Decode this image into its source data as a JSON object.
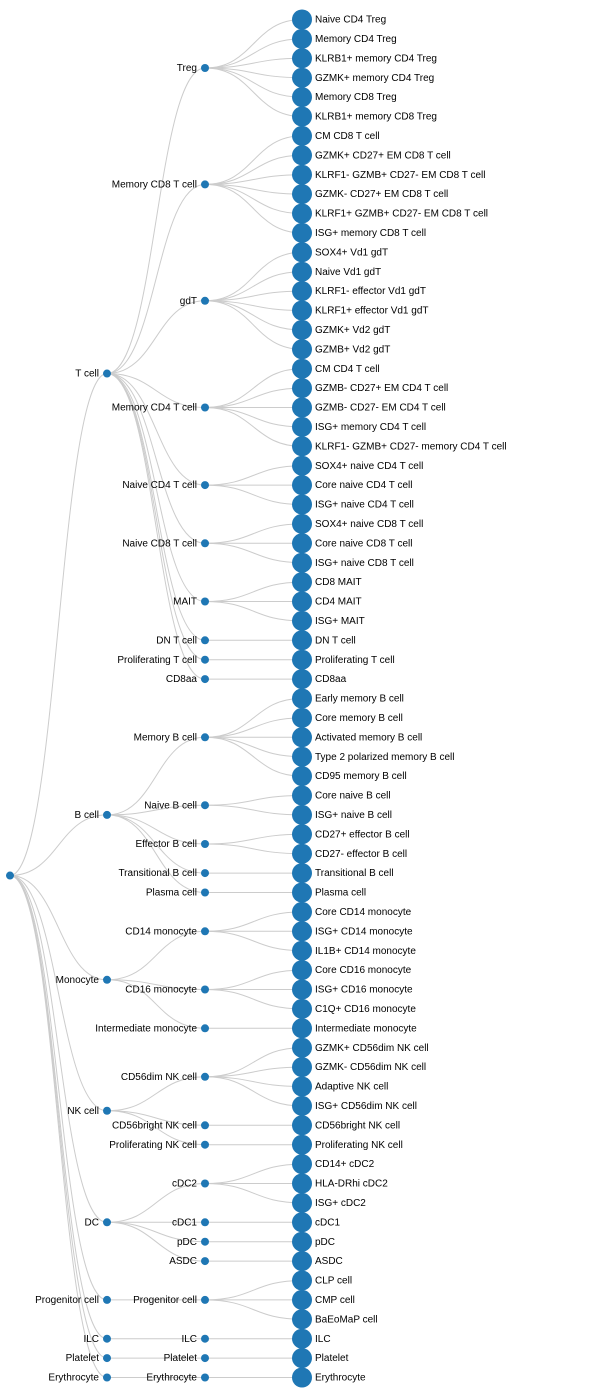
{
  "colors": {
    "node": "#1f77b4",
    "link": "#cccccc",
    "text": "#000000"
  },
  "tree": {
    "name": "",
    "children": [
      {
        "name": "T cell",
        "children": [
          {
            "name": "Treg",
            "children": [
              {
                "name": "Naive CD4 Treg"
              },
              {
                "name": "Memory CD4 Treg"
              },
              {
                "name": "KLRB1+ memory CD4 Treg"
              },
              {
                "name": "GZMK+ memory CD4 Treg"
              },
              {
                "name": "Memory CD8 Treg"
              },
              {
                "name": "KLRB1+ memory CD8 Treg"
              }
            ]
          },
          {
            "name": "Memory CD8 T cell",
            "children": [
              {
                "name": "CM CD8 T cell"
              },
              {
                "name": "GZMK+ CD27+ EM CD8 T cell"
              },
              {
                "name": "KLRF1- GZMB+ CD27- EM CD8 T cell"
              },
              {
                "name": "GZMK- CD27+ EM CD8 T cell"
              },
              {
                "name": "KLRF1+ GZMB+ CD27- EM CD8 T cell"
              },
              {
                "name": "ISG+ memory CD8 T cell"
              }
            ]
          },
          {
            "name": "gdT",
            "children": [
              {
                "name": "SOX4+ Vd1 gdT"
              },
              {
                "name": "Naive Vd1 gdT"
              },
              {
                "name": "KLRF1- effector Vd1 gdT"
              },
              {
                "name": "KLRF1+ effector Vd1 gdT"
              },
              {
                "name": "GZMK+ Vd2 gdT"
              },
              {
                "name": "GZMB+ Vd2 gdT"
              }
            ]
          },
          {
            "name": "Memory CD4 T cell",
            "children": [
              {
                "name": "CM CD4 T cell"
              },
              {
                "name": "GZMB- CD27+ EM CD4 T cell"
              },
              {
                "name": "GZMB- CD27- EM CD4 T cell"
              },
              {
                "name": "ISG+ memory CD4 T cell"
              },
              {
                "name": "KLRF1- GZMB+ CD27- memory CD4 T cell"
              }
            ]
          },
          {
            "name": "Naive CD4 T cell",
            "children": [
              {
                "name": "SOX4+ naive CD4 T cell"
              },
              {
                "name": "Core naive CD4 T cell"
              },
              {
                "name": "ISG+ naive CD4 T cell"
              }
            ]
          },
          {
            "name": "Naive CD8 T cell",
            "children": [
              {
                "name": "SOX4+ naive CD8 T cell"
              },
              {
                "name": "Core naive CD8 T cell"
              },
              {
                "name": "ISG+ naive CD8 T cell"
              }
            ]
          },
          {
            "name": "MAIT",
            "children": [
              {
                "name": "CD8 MAIT"
              },
              {
                "name": "CD4 MAIT"
              },
              {
                "name": "ISG+ MAIT"
              }
            ]
          },
          {
            "name": "DN T cell",
            "children": [
              {
                "name": "DN T cell"
              }
            ]
          },
          {
            "name": "Proliferating T cell",
            "children": [
              {
                "name": "Proliferating T cell"
              }
            ]
          },
          {
            "name": "CD8aa",
            "children": [
              {
                "name": "CD8aa"
              }
            ]
          }
        ]
      },
      {
        "name": "B cell",
        "children": [
          {
            "name": "Memory B cell",
            "children": [
              {
                "name": "Early memory B cell"
              },
              {
                "name": "Core memory B cell"
              },
              {
                "name": "Activated memory B cell"
              },
              {
                "name": "Type 2 polarized memory B cell"
              },
              {
                "name": "CD95 memory B cell"
              }
            ]
          },
          {
            "name": "Naive B cell",
            "children": [
              {
                "name": "Core naive B cell"
              },
              {
                "name": "ISG+ naive B cell"
              }
            ]
          },
          {
            "name": "Effector B cell",
            "children": [
              {
                "name": "CD27+ effector B cell"
              },
              {
                "name": "CD27- effector B cell"
              }
            ]
          },
          {
            "name": "Transitional B cell",
            "children": [
              {
                "name": "Transitional B cell"
              }
            ]
          },
          {
            "name": "Plasma cell",
            "children": [
              {
                "name": "Plasma cell"
              }
            ]
          }
        ]
      },
      {
        "name": "Monocyte",
        "children": [
          {
            "name": "CD14 monocyte",
            "children": [
              {
                "name": "Core CD14 monocyte"
              },
              {
                "name": "ISG+ CD14 monocyte"
              },
              {
                "name": "IL1B+ CD14 monocyte"
              }
            ]
          },
          {
            "name": "CD16 monocyte",
            "children": [
              {
                "name": "Core CD16 monocyte"
              },
              {
                "name": "ISG+ CD16 monocyte"
              },
              {
                "name": "C1Q+ CD16 monocyte"
              }
            ]
          },
          {
            "name": "Intermediate monocyte",
            "children": [
              {
                "name": "Intermediate monocyte"
              }
            ]
          }
        ]
      },
      {
        "name": "NK cell",
        "children": [
          {
            "name": "CD56dim NK cell",
            "children": [
              {
                "name": "GZMK+ CD56dim NK cell"
              },
              {
                "name": "GZMK- CD56dim NK cell"
              },
              {
                "name": "Adaptive NK cell"
              },
              {
                "name": "ISG+ CD56dim NK cell"
              }
            ]
          },
          {
            "name": "CD56bright NK cell",
            "children": [
              {
                "name": "CD56bright NK cell"
              }
            ]
          },
          {
            "name": "Proliferating NK cell",
            "children": [
              {
                "name": "Proliferating NK cell"
              }
            ]
          }
        ]
      },
      {
        "name": "DC",
        "children": [
          {
            "name": "cDC2",
            "children": [
              {
                "name": "CD14+ cDC2"
              },
              {
                "name": "HLA-DRhi cDC2"
              },
              {
                "name": "ISG+ cDC2"
              }
            ]
          },
          {
            "name": "cDC1",
            "children": [
              {
                "name": "cDC1"
              }
            ]
          },
          {
            "name": "pDC",
            "children": [
              {
                "name": "pDC"
              }
            ]
          },
          {
            "name": "ASDC",
            "children": [
              {
                "name": "ASDC"
              }
            ]
          }
        ]
      },
      {
        "name": "Progenitor cell",
        "children": [
          {
            "name": "Progenitor cell",
            "children": [
              {
                "name": "CLP cell"
              },
              {
                "name": "CMP cell"
              },
              {
                "name": "BaEoMaP cell"
              }
            ]
          }
        ]
      },
      {
        "name": "ILC",
        "children": [
          {
            "name": "ILC",
            "children": [
              {
                "name": "ILC"
              }
            ]
          }
        ]
      },
      {
        "name": "Platelet",
        "children": [
          {
            "name": "Platelet",
            "children": [
              {
                "name": "Platelet"
              }
            ]
          }
        ]
      },
      {
        "name": "Erythrocyte",
        "children": [
          {
            "name": "Erythrocyte",
            "children": [
              {
                "name": "Erythrocyte"
              }
            ]
          }
        ]
      }
    ]
  }
}
